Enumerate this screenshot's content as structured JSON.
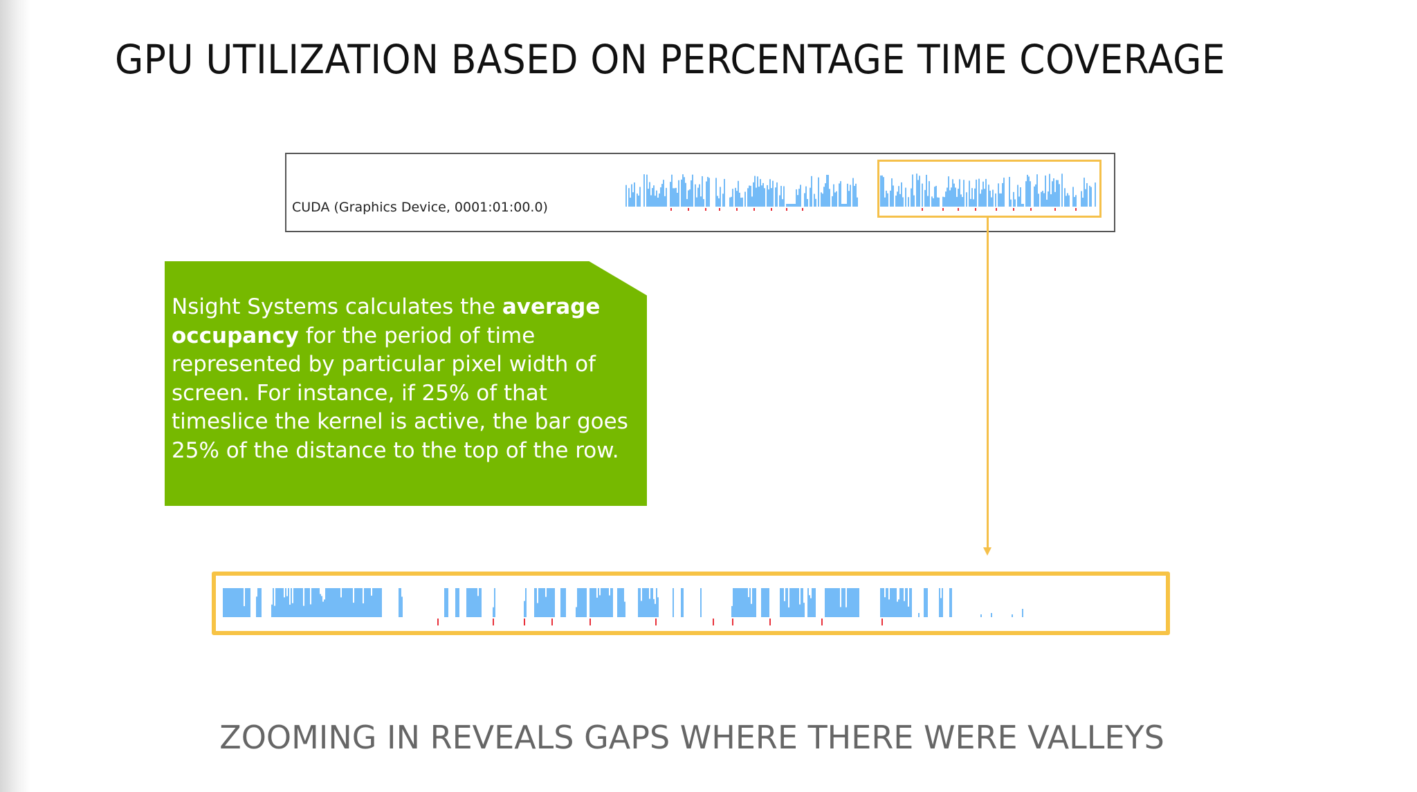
{
  "slide": {
    "title": "GPU UTILIZATION BASED ON PERCENTAGE TIME COVERAGE",
    "subtitle": "ZOOMING IN REVEALS GAPS WHERE THERE WERE VALLEYS"
  },
  "timeline": {
    "row_label": "CUDA (Graphics Device, 0001:01:00.0)"
  },
  "callout": {
    "text_before": "Nsight Systems calculates the ",
    "bold": "average occupancy",
    "text_after": " for the period of time represented by particular pixel width of screen. For instance, if 25% of that timeslice the kernel is active, the bar goes 25% of the distance to the top of the row."
  },
  "colors": {
    "accent_green": "#76b900",
    "highlight_orange": "#f5c04a",
    "bar_blue": "#74bbf7",
    "marker_red": "#e8303a"
  }
}
